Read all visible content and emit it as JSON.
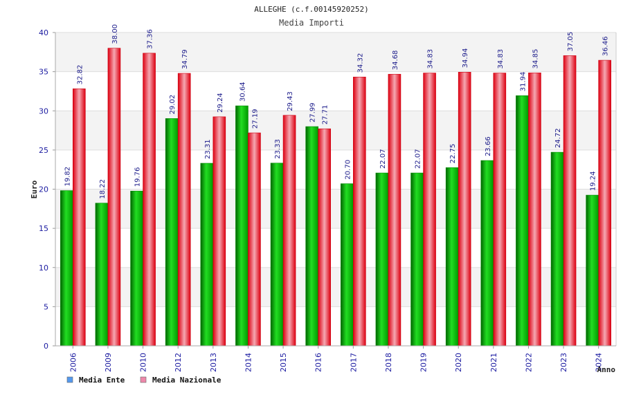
{
  "chart_data": {
    "type": "bar",
    "title": "ALLEGHE (c.f.00145920252)",
    "subtitle": "Media Importi",
    "ylabel": "Euro",
    "xlabel": "Anno",
    "ylim": [
      0,
      40
    ],
    "yticks": [
      0,
      5,
      10,
      15,
      20,
      25,
      30,
      35,
      40
    ],
    "categories": [
      "2006",
      "2009",
      "2010",
      "2012",
      "2013",
      "2014",
      "2015",
      "2016",
      "2017",
      "2018",
      "2019",
      "2020",
      "2021",
      "2022",
      "2023",
      "2024"
    ],
    "series": [
      {
        "name": "Media Ente",
        "color": "#00bb00",
        "values": [
          19.82,
          18.22,
          19.76,
          29.02,
          23.31,
          30.64,
          23.33,
          27.99,
          20.7,
          22.07,
          22.07,
          22.75,
          23.66,
          31.94,
          24.72,
          19.24
        ],
        "labels": [
          "19.82",
          "18.22",
          "19.76",
          "29.02",
          "23.31",
          "30.64",
          "23.33",
          "27.99",
          "20.70",
          "22.07",
          "22.07",
          "22.75",
          "23.66",
          "31.94",
          "24.72",
          "19.24"
        ]
      },
      {
        "name": "Media Nazionale",
        "color": "#ee1122",
        "values": [
          32.82,
          38.0,
          37.36,
          34.79,
          29.24,
          27.19,
          29.43,
          27.71,
          34.32,
          34.68,
          34.83,
          34.94,
          34.83,
          34.85,
          37.05,
          36.46
        ],
        "labels": [
          "32.82",
          "38.00",
          "37.36",
          "34.79",
          "29.24",
          "27.19",
          "29.43",
          "27.71",
          "34.32",
          "34.68",
          "34.83",
          "34.94",
          "34.83",
          "34.85",
          "37.05",
          "36.46"
        ]
      }
    ],
    "legend": [
      {
        "label": "Media Ente",
        "color": "#5599ee"
      },
      {
        "label": "Media Nazionale",
        "color": "#ee88aa"
      }
    ],
    "grid": true,
    "legend_position": "bottom-left"
  }
}
